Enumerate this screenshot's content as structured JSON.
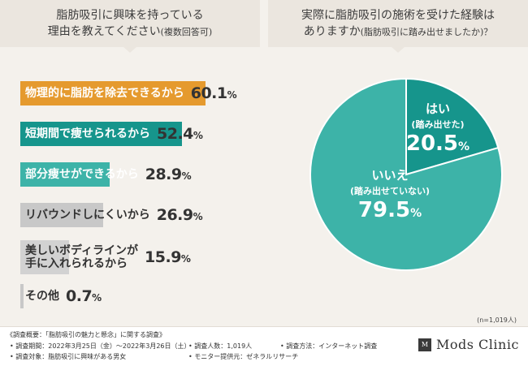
{
  "header_left": {
    "line1": "脂肪吸引に興味を持っている",
    "line2": "理由を教えてください",
    "line2_note": "(複数回答可)"
  },
  "header_right": {
    "line1": "実際に脂肪吸引の施術を受けた経験は",
    "line2": "ありますか",
    "line2_note": "(脂肪吸引に踏み出せましたか)？"
  },
  "chart_data": [
    {
      "type": "bar",
      "orientation": "horizontal",
      "title": "脂肪吸引に興味を持っている理由を教えてください(複数回答可)",
      "categories": [
        "物理的に脂肪を除去できるから",
        "短期間で痩せられるから",
        "部分痩せができるから",
        "リバウンドしにくいから",
        "美しいボディラインが手に入れられるから",
        "その他"
      ],
      "category_lines": [
        [
          "物理的に脂肪を除去できるから"
        ],
        [
          "短期間で痩せられるから"
        ],
        [
          "部分痩せができるから"
        ],
        [
          "リバウンドしにくいから"
        ],
        [
          "美しいボディラインが",
          "手に入れられるから"
        ],
        [
          "その他"
        ]
      ],
      "values": [
        60.1,
        52.4,
        28.9,
        26.9,
        15.9,
        0.7
      ],
      "value_labels": [
        "60.1",
        "52.4",
        "28.9",
        "26.9",
        "15.9",
        "0.7"
      ],
      "unit": "%",
      "colors": [
        "#e59a2e",
        "#16958c",
        "#3db3a8",
        "#c8c8c8",
        "#d2d2d2",
        "#c8c8c8"
      ],
      "xlim": [
        0,
        100
      ]
    },
    {
      "type": "pie",
      "title": "実際に脂肪吸引の施術を受けた経験はありますか(脂肪吸引に踏み出せましたか)？",
      "slices": [
        {
          "label": "はい",
          "sublabel": "(踏み出せた)",
          "value": 20.5,
          "value_label": "20.5",
          "color": "#16958c"
        },
        {
          "label": "いいえ",
          "sublabel": "(踏み出せていない)",
          "value": 79.5,
          "value_label": "79.5",
          "color": "#3db3a8"
        }
      ],
      "unit": "%",
      "start": "top",
      "direction": "clockwise"
    }
  ],
  "n_label": "(n=1,019人)",
  "footer": {
    "summary": "《調査概要：「脂肪吸引の魅力と懸念」に関する調査》",
    "period": "• 調査期間：2022年3月25日（金）〜2022年3月26日（土）",
    "count": "• 調査人数：1,019人",
    "method": "• 調査方法：インターネット調査",
    "target": "• 調査対象：脂肪吸引に興味がある男女",
    "provider": "• モニター提供元：ゼネラルリサーチ"
  },
  "logo": {
    "mark": "M",
    "name": "Mods Clinic"
  }
}
